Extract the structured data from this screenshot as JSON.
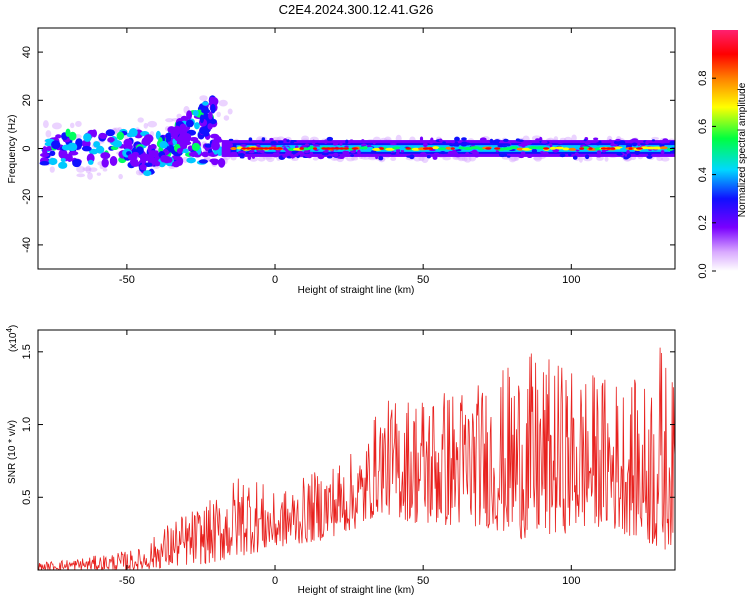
{
  "title": "C2E4.2024.300.12.41.G26",
  "chart_data": [
    {
      "type": "heatmap",
      "xlabel": "Height of straight line (km)",
      "ylabel": "Frequency (Hz)",
      "xlim": [
        -80,
        135
      ],
      "ylim": [
        -50,
        50
      ],
      "xticks": [
        -50,
        0,
        50,
        100
      ],
      "yticks": [
        -40,
        -20,
        0,
        20,
        40
      ],
      "colorbar": {
        "label": "Normalized spectral amplitude",
        "range": [
          0.0,
          1.0
        ],
        "ticks": [
          "0.0",
          "0.2",
          "0.4",
          "0.6",
          "0.8"
        ],
        "tick_values": [
          0.0,
          0.2,
          0.4,
          0.6,
          0.8
        ],
        "colors": [
          "#ffffff",
          "#d8a8ff",
          "#7a00ff",
          "#1010ff",
          "#00d8ff",
          "#00ff40",
          "#ffff00",
          "#ff8000",
          "#ff0000",
          "#ff2070"
        ]
      },
      "tracks": [
        {
          "x": [
            -80,
            -20
          ],
          "y": [
            0,
            0
          ],
          "note": "scattered band"
        },
        {
          "x": [
            -42,
            -20
          ],
          "y": [
            -10,
            18
          ],
          "note": "rising branch"
        },
        {
          "x": [
            -15,
            135
          ],
          "y": [
            0,
            0
          ],
          "note": "main carrier"
        }
      ]
    },
    {
      "type": "line",
      "xlabel": "Height of straight line (km)",
      "ylabel": "SNR (10 * v/v)",
      "multiplier": "(x10",
      "multiplier_exp": "4",
      "multiplier_close": ")",
      "xlim": [
        -80,
        135
      ],
      "ylim": [
        0,
        1.65
      ],
      "xticks": [
        -50,
        0,
        50,
        100
      ],
      "yticks": [
        0.5,
        1.0,
        1.5
      ],
      "ytick_labels": [
        "0.5",
        "1.0",
        "1.5"
      ],
      "color": "#e8211e",
      "envelope": [
        {
          "x": -80,
          "lo": 0.0,
          "hi": 0.05
        },
        {
          "x": -60,
          "lo": 0.0,
          "hi": 0.1
        },
        {
          "x": -45,
          "lo": 0.0,
          "hi": 0.15
        },
        {
          "x": -35,
          "lo": 0.02,
          "hi": 0.35
        },
        {
          "x": -20,
          "lo": 0.05,
          "hi": 0.5
        },
        {
          "x": -10,
          "lo": 0.1,
          "hi": 0.72
        },
        {
          "x": 0,
          "lo": 0.15,
          "hi": 0.52
        },
        {
          "x": 15,
          "lo": 0.2,
          "hi": 0.7
        },
        {
          "x": 30,
          "lo": 0.3,
          "hi": 0.85
        },
        {
          "x": 35,
          "lo": 0.4,
          "hi": 1.15
        },
        {
          "x": 50,
          "lo": 0.3,
          "hi": 1.25
        },
        {
          "x": 70,
          "lo": 0.3,
          "hi": 1.3
        },
        {
          "x": 85,
          "lo": 0.2,
          "hi": 1.5
        },
        {
          "x": 110,
          "lo": 0.3,
          "hi": 1.35
        },
        {
          "x": 125,
          "lo": 0.2,
          "hi": 1.3
        },
        {
          "x": 130,
          "lo": 0.1,
          "hi": 1.6
        },
        {
          "x": 135,
          "lo": 0.2,
          "hi": 1.25
        }
      ]
    }
  ]
}
